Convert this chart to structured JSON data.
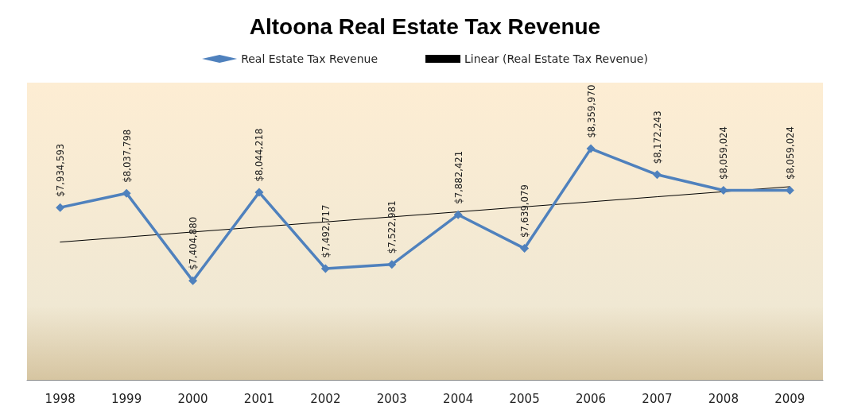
{
  "chart_data": {
    "type": "line",
    "title": "Altoona Real Estate Tax Revenue",
    "categories": [
      "1998",
      "1999",
      "2000",
      "2001",
      "2002",
      "2003",
      "2004",
      "2005",
      "2006",
      "2007",
      "2008",
      "2009"
    ],
    "series": [
      {
        "name": "Real Estate Tax Revenue",
        "color": "#4f81bd",
        "marker": "diamond",
        "values": [
          7934593,
          8037798,
          7404880,
          8044218,
          7492717,
          7522981,
          7882421,
          7639079,
          8359970,
          8172243,
          8059024,
          8059024
        ],
        "value_labels": [
          "$7,934,593",
          "$8,037,798",
          "$7,404,880",
          "$8,044,218",
          "$7,492,717",
          "$7,522,981",
          "$7,882,421",
          "$7,639,079",
          "$8,359,970",
          "$8,172,243",
          "$8,059,024",
          "$8,059,024"
        ]
      },
      {
        "name": "Linear (Real Estate Tax Revenue)",
        "color": "#000000",
        "marker": "none",
        "values": [
          7684912,
          7721306,
          7757700,
          7794094,
          7830488,
          7866882,
          7903276,
          7939670,
          7976064,
          8012458,
          8048852,
          8085246
        ]
      }
    ],
    "grid": false,
    "legend": "top"
  }
}
